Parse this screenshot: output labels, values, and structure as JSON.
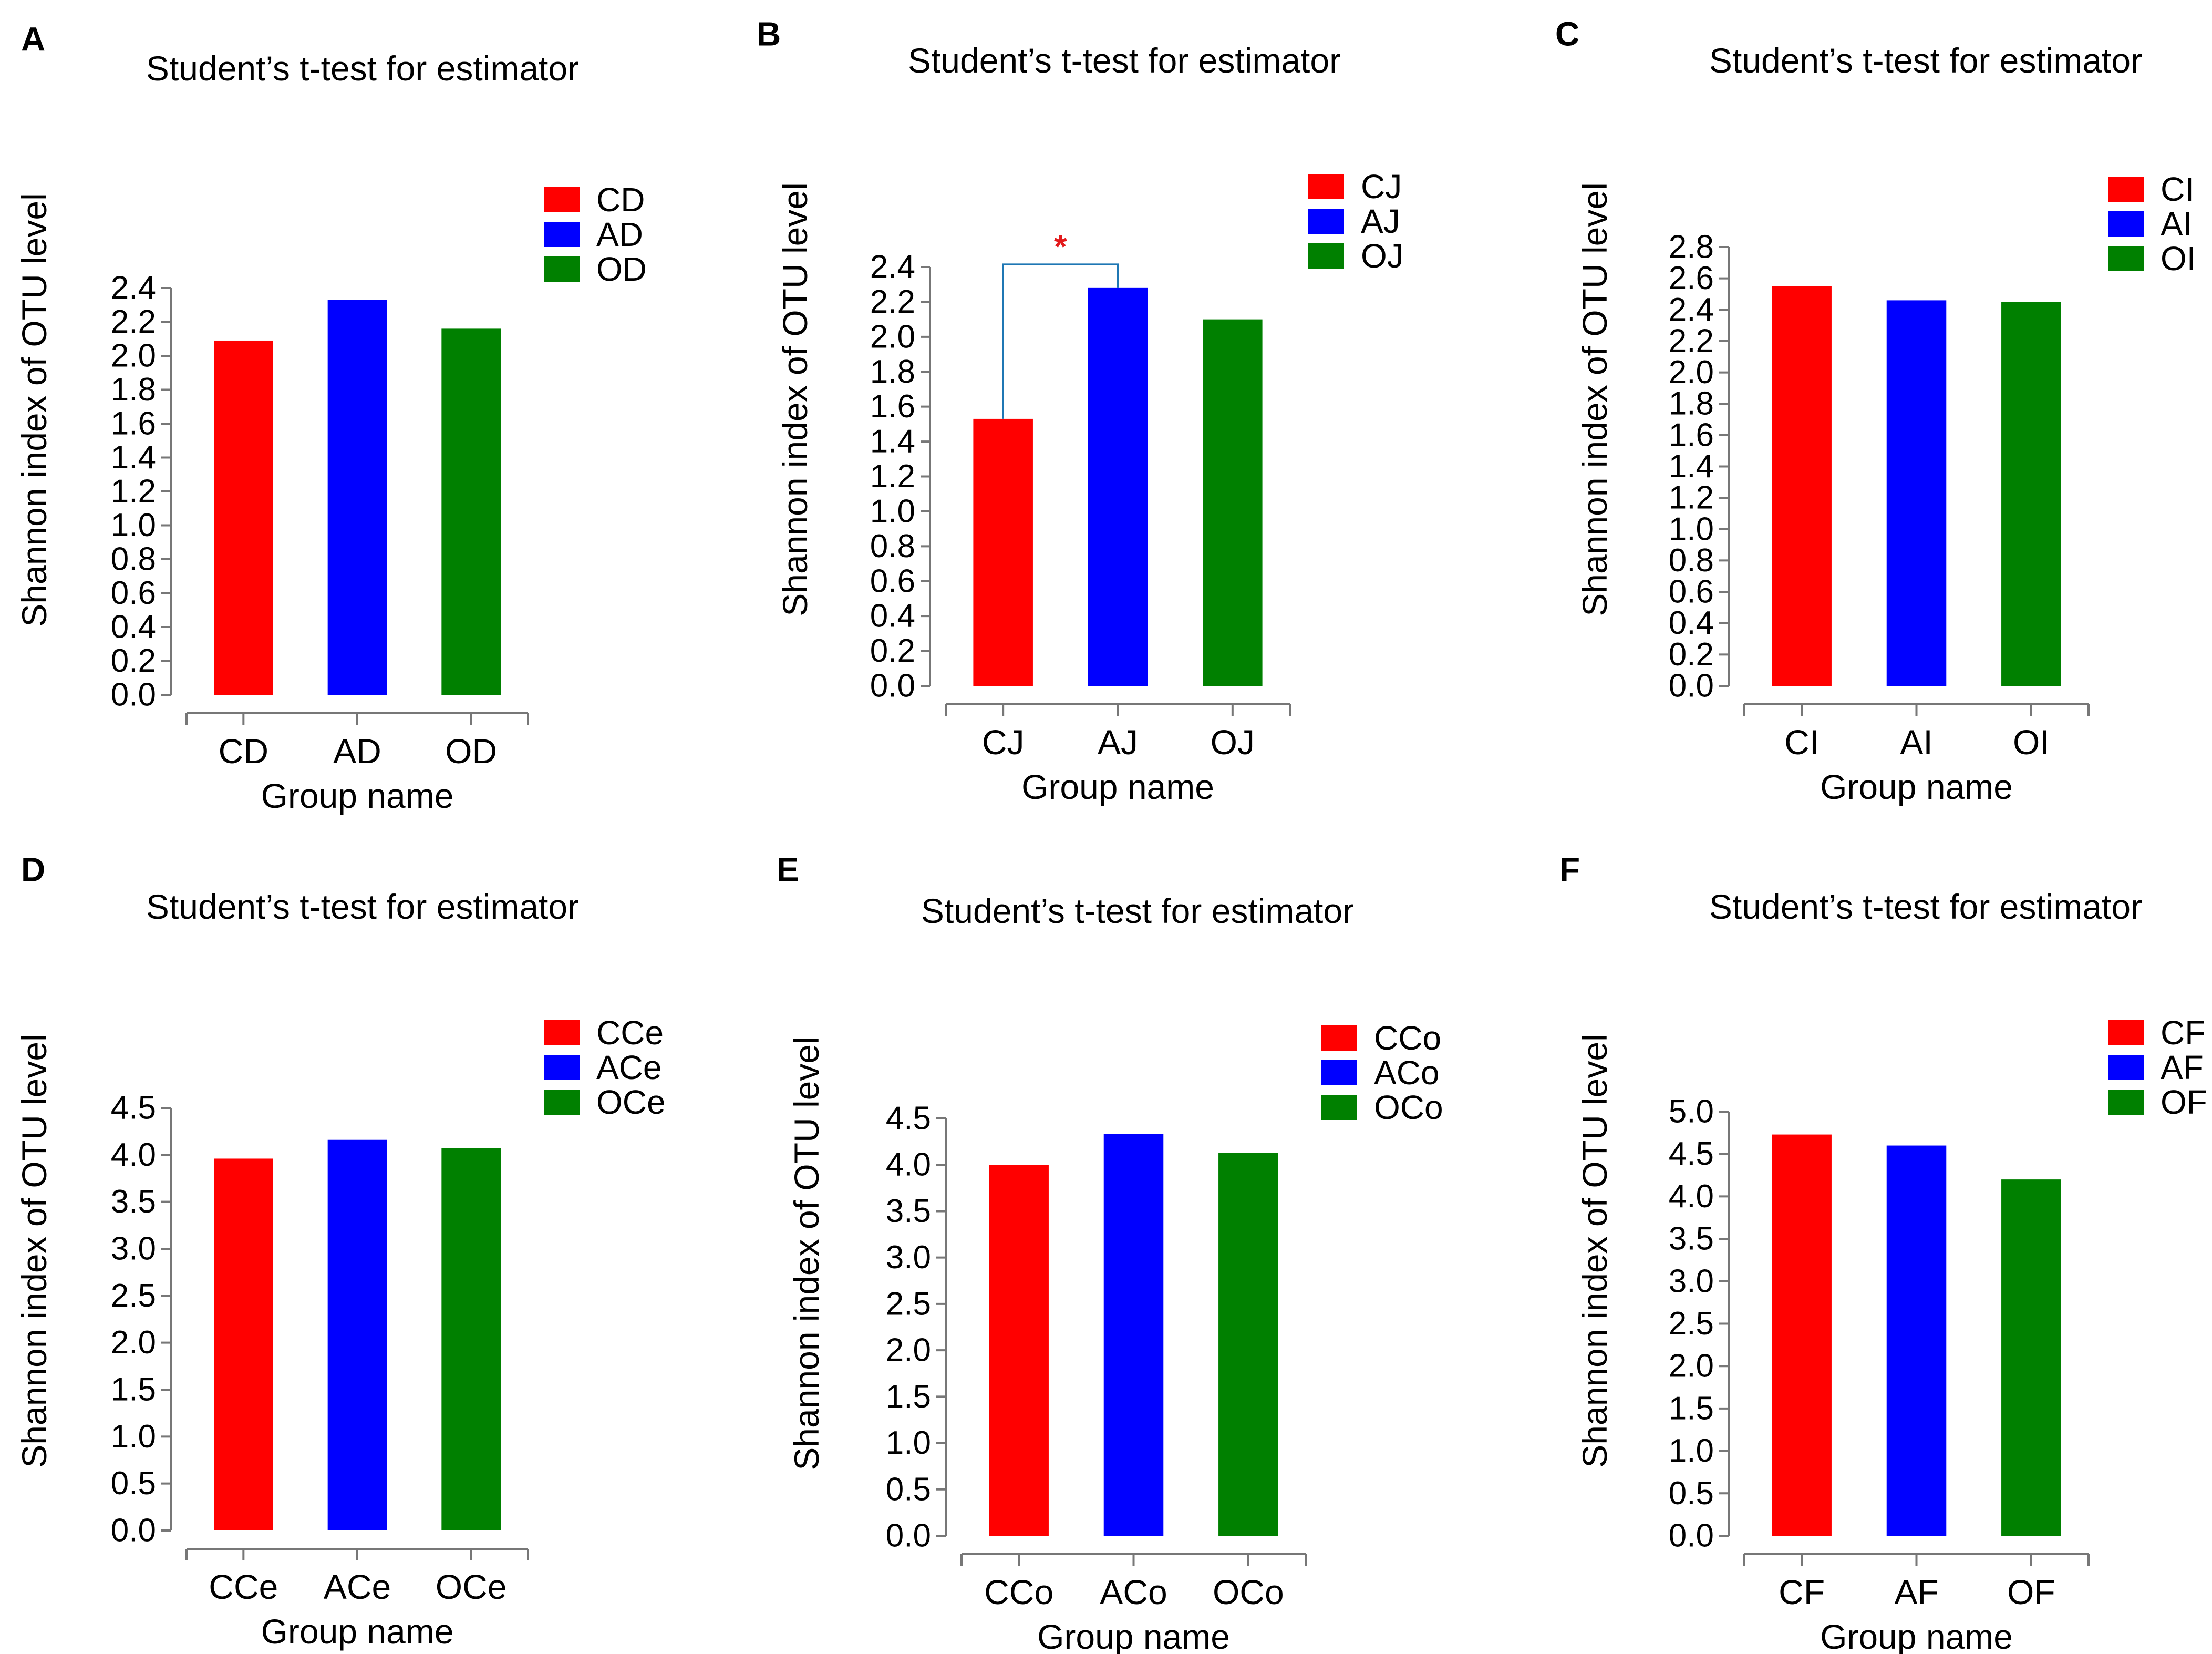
{
  "figure": {
    "colors": {
      "red": "#ff0000",
      "blue": "#0000ff",
      "green": "#008000",
      "bracket": "#1f77b4",
      "star": "#e31a1c"
    }
  },
  "chart_data": [
    {
      "panel": "A",
      "type": "bar",
      "title": "Student’s t-test for estimator",
      "xlabel": "Group name",
      "ylabel": "Shannon index of OTU level",
      "categories": [
        "CD",
        "AD",
        "OD"
      ],
      "values": [
        2.09,
        2.33,
        2.16
      ],
      "legend": [
        "CD",
        "AD",
        "OD"
      ],
      "ylim": [
        0,
        2.4
      ],
      "yticks": [
        "0.0",
        "0.2",
        "0.4",
        "0.6",
        "0.8",
        "1.0",
        "1.2",
        "1.4",
        "1.6",
        "1.8",
        "2.0",
        "2.2",
        "2.4"
      ],
      "significance": null
    },
    {
      "panel": "B",
      "type": "bar",
      "title": "Student’s t-test for estimator",
      "xlabel": "Group name",
      "ylabel": "Shannon index of OTU level",
      "categories": [
        "CJ",
        "AJ",
        "OJ"
      ],
      "values": [
        1.53,
        2.28,
        2.1
      ],
      "legend": [
        "CJ",
        "AJ",
        "OJ"
      ],
      "ylim": [
        0,
        2.4
      ],
      "yticks": [
        "0.0",
        "0.2",
        "0.4",
        "0.6",
        "0.8",
        "1.0",
        "1.2",
        "1.4",
        "1.6",
        "1.8",
        "2.0",
        "2.2",
        "2.4"
      ],
      "significance": {
        "from": 0,
        "to": 1,
        "label": "*"
      }
    },
    {
      "panel": "C",
      "type": "bar",
      "title": "Student’s t-test for estimator",
      "xlabel": "Group name",
      "ylabel": "Shannon index of OTU level",
      "categories": [
        "CI",
        "AI",
        "OI"
      ],
      "values": [
        2.55,
        2.46,
        2.45
      ],
      "legend": [
        "CI",
        "AI",
        "OI"
      ],
      "ylim": [
        0,
        2.8
      ],
      "yticks": [
        "0.0",
        "0.2",
        "0.4",
        "0.6",
        "0.8",
        "1.0",
        "1.2",
        "1.4",
        "1.6",
        "1.8",
        "2.0",
        "2.2",
        "2.4",
        "2.6",
        "2.8"
      ],
      "significance": null
    },
    {
      "panel": "D",
      "type": "bar",
      "title": "Student’s t-test for estimator",
      "xlabel": "Group name",
      "ylabel": "Shannon index of OTU level",
      "categories": [
        "CCe",
        "ACe",
        "OCe"
      ],
      "values": [
        3.96,
        4.16,
        4.07
      ],
      "legend": [
        "CCe",
        "ACe",
        "OCe"
      ],
      "ylim": [
        0,
        4.5
      ],
      "yticks": [
        "0.0",
        "0.5",
        "1.0",
        "1.5",
        "2.0",
        "2.5",
        "3.0",
        "3.5",
        "4.0",
        "4.5"
      ],
      "significance": null
    },
    {
      "panel": "E",
      "type": "bar",
      "title": "Student’s t-test for estimator",
      "xlabel": "Group name",
      "ylabel": "Shannon index of OTU level",
      "categories": [
        "CCo",
        "ACo",
        "OCo"
      ],
      "values": [
        4.0,
        4.33,
        4.13
      ],
      "legend": [
        "CCo",
        "ACo",
        "OCo"
      ],
      "ylim": [
        0,
        4.5
      ],
      "yticks": [
        "0.0",
        "0.5",
        "1.0",
        "1.5",
        "2.0",
        "2.5",
        "3.0",
        "3.5",
        "4.0",
        "4.5"
      ],
      "significance": null
    },
    {
      "panel": "F",
      "type": "bar",
      "title": "Student’s t-test for estimator",
      "xlabel": "Group name",
      "ylabel": "Shannon index of OTU level",
      "categories": [
        "CF",
        "AF",
        "OF"
      ],
      "values": [
        4.73,
        4.6,
        4.2
      ],
      "legend": [
        "CF",
        "AF",
        "OF"
      ],
      "ylim": [
        0,
        5.0
      ],
      "yticks": [
        "0.0",
        "0.5",
        "1.0",
        "1.5",
        "2.0",
        "2.5",
        "3.0",
        "3.5",
        "4.0",
        "4.5",
        "5.0"
      ],
      "significance": null
    }
  ]
}
